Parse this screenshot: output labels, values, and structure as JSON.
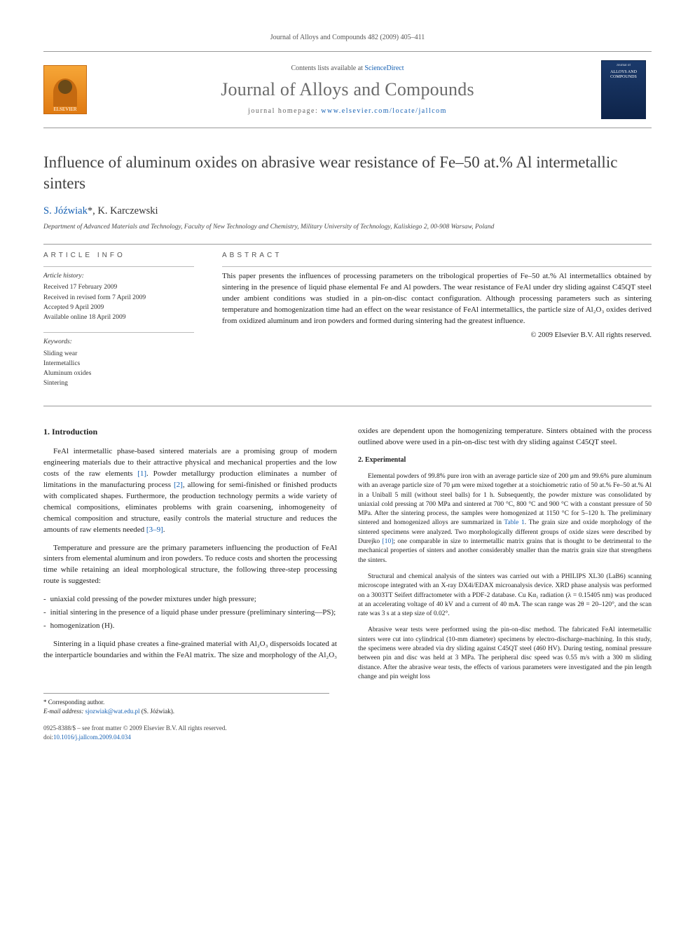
{
  "running_head": "Journal of Alloys and Compounds 482 (2009) 405–411",
  "masthead": {
    "contents_prefix": "Contents lists available at ",
    "contents_link": "ScienceDirect",
    "journal_name": "Journal of Alloys and Compounds",
    "homepage_prefix": "journal homepage: ",
    "homepage_url": "www.elsevier.com/locate/jallcom",
    "elsevier_label": "ELSEVIER",
    "cover_top": "Journal of",
    "cover_title": "ALLOYS AND COMPOUNDS"
  },
  "article": {
    "title": "Influence of aluminum oxides on abrasive wear resistance of Fe–50 at.% Al intermetallic sinters",
    "authors_html": "S. Jóźwiak*, K. Karczewski",
    "authors_a": "S. Jóźwiak",
    "authors_sup": "*",
    "authors_b": ", K. Karczewski",
    "affiliation": "Department of Advanced Materials and Technology, Faculty of New Technology and Chemistry, Military University of Technology, Kaliskiego 2, 00-908 Warsaw, Poland"
  },
  "info": {
    "head": "ARTICLE INFO",
    "history_title": "Article history:",
    "received": "Received 17 February 2009",
    "revised": "Received in revised form 7 April 2009",
    "accepted": "Accepted 9 April 2009",
    "online": "Available online 18 April 2009",
    "keywords_title": "Keywords:",
    "kw1": "Sliding wear",
    "kw2": "Intermetallics",
    "kw3": "Aluminum oxides",
    "kw4": "Sintering"
  },
  "abstract": {
    "head": "ABSTRACT",
    "text": "This paper presents the influences of processing parameters on the tribological properties of Fe–50 at.% Al intermetallics obtained by sintering in the presence of liquid phase elemental Fe and Al powders. The wear resistance of FeAl under dry sliding against C45QT steel under ambient conditions was studied in a pin-on-disc contact configuration. Although processing parameters such as sintering temperature and homogenization time had an effect on the wear resistance of FeAl intermetallics, the particle size of Al₂O₃ oxides derived from oxidized aluminum and iron powders and formed during sintering had the greatest influence.",
    "copyright": "© 2009 Elsevier B.V. All rights reserved."
  },
  "intro": {
    "head": "1. Introduction",
    "p1a": "FeAl intermetallic phase-based sintered materials are a promising group of modern engineering materials due to their attractive physical and mechanical properties and the low costs of the raw elements ",
    "ref1": "[1]",
    "p1b": ". Powder metallurgy production eliminates a number of limitations in the manufacturing process ",
    "ref2": "[2]",
    "p1c": ", allowing for semi-finished or finished products with complicated shapes. Furthermore, the production technology permits a wide variety of chemical compositions, eliminates problems with grain coarsening, inhomogeneity of chemical composition and structure, easily controls the material structure and reduces the amounts of raw elements needed ",
    "ref3": "[3–9]",
    "p1d": ".",
    "p2": "Temperature and pressure are the primary parameters influencing the production of FeAl sinters from elemental aluminum and iron powders. To reduce costs and shorten the processing time while retaining an ideal morphological structure, the following three-step processing route is suggested:",
    "b1": "uniaxial cold pressing of the powder mixtures under high pressure;",
    "b2": "initial sintering in the presence of a liquid phase under pressure (preliminary sintering—PS);",
    "b3": "homogenization (H).",
    "p3": "Sintering in a liquid phase creates a fine-grained material with Al₂O₃ dispersoids located at the interparticle boundaries and within the FeAl matrix. The size and morphology of the Al₂O₃ oxides are dependent upon the homogenizing temperature. Sinters obtained with the process outlined above were used in a pin-on-disc test with dry sliding against C45QT steel."
  },
  "experimental": {
    "head": "2. Experimental",
    "p1a": "Elemental powders of 99.8% pure iron with an average particle size of 200 μm and 99.6% pure aluminum with an average particle size of 70 μm were mixed together at a stoichiometric ratio of 50 at.% Fe–50 at.% Al in a Uniball 5 mill (without steel balls) for 1 h. Subsequently, the powder mixture was consolidated by uniaxial cold pressing at 700 MPa and sintered at 700 °C, 800 °C and 900 °C with a constant pressure of 50 MPa. After the sintering process, the samples were homogenized at 1150 °C for 5–120 h. The preliminary sintered and homogenized alloys are summarized in ",
    "tab1": "Table 1",
    "p1b": ". The grain size and oxide morphology of the sintered specimens were analyzed. Two morphologically different groups of oxide sizes were described by Durejko ",
    "ref10": "[10]",
    "p1c": "; one comparable in size to intermetallic matrix grains that is thought to be detrimental to the mechanical properties of sinters and another considerably smaller than the matrix grain size that strengthens the sinters.",
    "p2": "Structural and chemical analysis of the sinters was carried out with a PHILIPS XL30 (LaB6) scanning microscope integrated with an X-ray DX4i/EDAX microanalysis device. XRD phase analysis was performed on a 3003TT Seifert diffractometer with a PDF-2 database. Cu Kα₁ radiation (λ = 0.15405 nm) was produced at an accelerating voltage of 40 kV and a current of 40 mA. The scan range was 2θ = 20–120°, and the scan rate was 3 s at a step size of 0.02°.",
    "p3": "Abrasive wear tests were performed using the pin-on-disc method. The fabricated FeAl intermetallic sinters were cut into cylindrical (10-mm diameter) specimens by electro-discharge-machining. In this study, the specimens were abraded via dry sliding against C45QT steel (460 HV). During testing, nominal pressure between pin and disc was held at 3 MPa. The peripheral disc speed was 0.55 m/s with a 300 m sliding distance. After the abrasive wear tests, the effects of various parameters were investigated and the pin length change and pin weight loss"
  },
  "footnotes": {
    "corr_label": "* Corresponding author.",
    "email_label": "E-mail address: ",
    "email": "sjozwiak@wat.edu.pl",
    "email_suffix": " (S. Jóźwiak)."
  },
  "doi": {
    "line1": "0925-8388/$ – see front matter © 2009 Elsevier B.V. All rights reserved.",
    "line2prefix": "doi:",
    "doi": "10.1016/j.jallcom.2009.04.034"
  },
  "colors": {
    "link": "#1560b3",
    "text": "#222222",
    "rule": "#999999",
    "journal_gray": "#6b6b6b"
  }
}
